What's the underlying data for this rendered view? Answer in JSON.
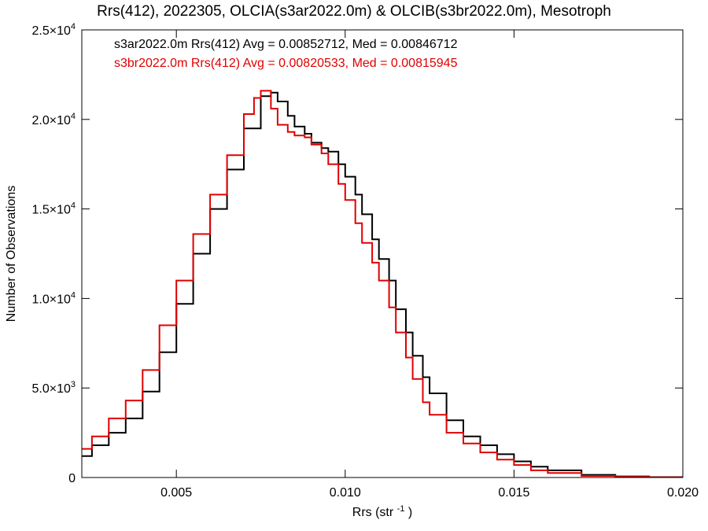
{
  "chart_data": {
    "type": "line",
    "title": "Rrs(412), 2022305, OLCIA(s3ar2022.0m) & OLCIB(s3br2022.0m), Mesotroph",
    "xlabel": "Rrs (str",
    "xlabel_sup": "-1",
    "xlabel_end": ")",
    "ylabel": "Number of Observations",
    "xlim": [
      0.0022,
      0.02
    ],
    "ylim": [
      0,
      25000
    ],
    "grid": false,
    "step": true,
    "x_ticks": [
      {
        "value": 0.005,
        "label": "0.005"
      },
      {
        "value": 0.01,
        "label": "0.010"
      },
      {
        "value": 0.015,
        "label": "0.015"
      },
      {
        "value": 0.02,
        "label": "0.020"
      }
    ],
    "y_ticks": [
      {
        "value": 0,
        "mant": "0",
        "exp": ""
      },
      {
        "value": 5000,
        "mant": "5.0×10",
        "exp": "3"
      },
      {
        "value": 10000,
        "mant": "1.0×10",
        "exp": "4"
      },
      {
        "value": 15000,
        "mant": "1.5×10",
        "exp": "4"
      },
      {
        "value": 20000,
        "mant": "2.0×10",
        "exp": "4"
      },
      {
        "value": 25000,
        "mant": "2.5×10",
        "exp": "4"
      }
    ],
    "legend": [
      {
        "text": "s3ar2022.0m Rrs(412) Avg = 0.00852712, Med = 0.00846712",
        "color": "#000000"
      },
      {
        "text": "s3br2022.0m Rrs(412) Avg = 0.00820533, Med = 0.00815945",
        "color": "#e00000"
      }
    ],
    "series": [
      {
        "color": "#000000",
        "x": [
          0.0022,
          0.0025,
          0.003,
          0.0035,
          0.004,
          0.0045,
          0.005,
          0.0055,
          0.006,
          0.0065,
          0.007,
          0.0075,
          0.0078,
          0.008,
          0.0083,
          0.0085,
          0.0088,
          0.009,
          0.0093,
          0.0095,
          0.0098,
          0.01,
          0.0103,
          0.0105,
          0.0108,
          0.011,
          0.0113,
          0.0115,
          0.0118,
          0.012,
          0.0123,
          0.0125,
          0.013,
          0.0135,
          0.014,
          0.0145,
          0.015,
          0.0155,
          0.016,
          0.017,
          0.018,
          0.019,
          0.02
        ],
        "y": [
          1200,
          1800,
          2500,
          3300,
          4800,
          7000,
          9700,
          12500,
          15000,
          17200,
          19500,
          21300,
          21500,
          21000,
          20200,
          19600,
          19200,
          18700,
          18400,
          18200,
          17500,
          16800,
          15800,
          14700,
          13300,
          12200,
          11000,
          9400,
          8100,
          6800,
          5600,
          4700,
          3200,
          2300,
          1800,
          1300,
          900,
          600,
          400,
          150,
          60,
          20,
          5
        ]
      },
      {
        "color": "#e00000",
        "x": [
          0.0022,
          0.0025,
          0.003,
          0.0035,
          0.004,
          0.0045,
          0.005,
          0.0055,
          0.006,
          0.0065,
          0.007,
          0.0073,
          0.0075,
          0.0078,
          0.008,
          0.0083,
          0.0085,
          0.0088,
          0.009,
          0.0093,
          0.0095,
          0.0098,
          0.01,
          0.0103,
          0.0105,
          0.0108,
          0.011,
          0.0113,
          0.0115,
          0.0118,
          0.012,
          0.0123,
          0.0125,
          0.013,
          0.0135,
          0.014,
          0.0145,
          0.015,
          0.0155,
          0.016,
          0.017,
          0.018,
          0.019,
          0.02
        ],
        "y": [
          1600,
          2300,
          3300,
          4300,
          6000,
          8500,
          11000,
          13600,
          15800,
          18000,
          20300,
          21200,
          21600,
          20600,
          19700,
          19300,
          19100,
          19000,
          18600,
          18100,
          17500,
          16400,
          15500,
          14200,
          13100,
          12000,
          11000,
          9500,
          8100,
          6700,
          5500,
          4200,
          3500,
          2500,
          1900,
          1400,
          1000,
          700,
          400,
          250,
          90,
          35,
          10,
          2
        ]
      }
    ]
  }
}
